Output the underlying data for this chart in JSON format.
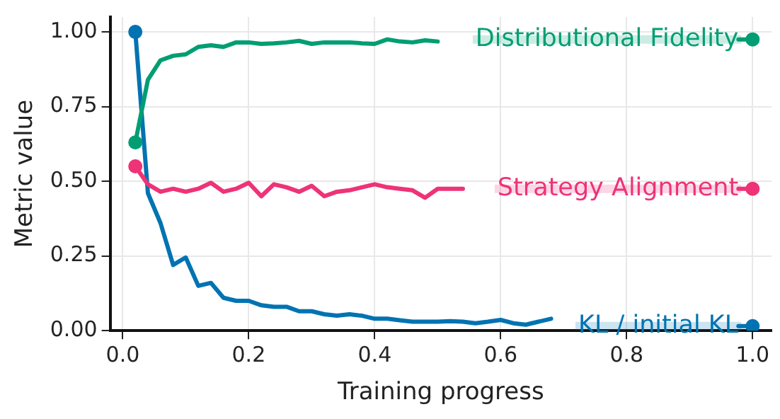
{
  "chart_data": {
    "type": "line",
    "xlabel": "Training progress",
    "ylabel": "Metric value",
    "x": [
      0.02,
      0.04,
      0.06,
      0.08,
      0.1,
      0.12,
      0.14,
      0.16,
      0.18,
      0.2,
      0.22,
      0.24,
      0.26,
      0.28,
      0.3,
      0.32,
      0.34,
      0.36,
      0.38,
      0.4,
      0.42,
      0.44,
      0.46,
      0.48,
      0.5,
      0.52,
      0.54,
      0.56,
      0.58,
      0.6,
      0.62,
      0.64,
      0.66,
      0.68,
      0.7,
      0.72,
      0.74,
      0.76,
      0.78,
      0.8,
      0.82,
      0.84,
      0.86,
      0.88,
      0.9,
      0.92,
      0.94,
      0.96,
      0.98,
      1.0
    ],
    "series": [
      {
        "name": "Distributional Fidelity",
        "color": "#029e73",
        "values": [
          0.63,
          0.84,
          0.905,
          0.92,
          0.925,
          0.95,
          0.955,
          0.95,
          0.965,
          0.965,
          0.96,
          0.962,
          0.965,
          0.97,
          0.96,
          0.965,
          0.965,
          0.965,
          0.962,
          0.96,
          0.975,
          0.968,
          0.965,
          0.972,
          0.968,
          null,
          null,
          null,
          null,
          null,
          null,
          null,
          null,
          null,
          null,
          null,
          null,
          null,
          null,
          null,
          null,
          null,
          null,
          null,
          null,
          null,
          null,
          null,
          null,
          0.975
        ]
      },
      {
        "name": "Strategy Alignment",
        "color": "#ee3377",
        "values": [
          0.55,
          0.49,
          0.465,
          0.475,
          0.465,
          0.475,
          0.495,
          0.465,
          0.475,
          0.495,
          0.45,
          0.49,
          0.48,
          0.465,
          0.485,
          0.45,
          0.465,
          0.47,
          0.48,
          0.49,
          0.48,
          0.475,
          0.47,
          0.445,
          0.475,
          0.475,
          0.475,
          null,
          null,
          null,
          null,
          null,
          null,
          null,
          null,
          null,
          null,
          null,
          null,
          null,
          null,
          null,
          null,
          null,
          null,
          null,
          null,
          null,
          null,
          0.475
        ]
      },
      {
        "type": "scatter",
        "marker": "circle",
        "color": "#029e73",
        "values": [
          0.63,
          null,
          null,
          null,
          null,
          null,
          null,
          null,
          null,
          null,
          null,
          null,
          null,
          null,
          null,
          null,
          null,
          null,
          null,
          null,
          null,
          null,
          null,
          null,
          null,
          null,
          null,
          null,
          null,
          null,
          null,
          null,
          null,
          null,
          null,
          null,
          null,
          null,
          null,
          null,
          null,
          null,
          null,
          null,
          null,
          null,
          null,
          null,
          null,
          0.975
        ]
      },
      {
        "type": "scatter",
        "marker": "circle",
        "color": "#ee3377",
        "values": [
          0.55,
          null,
          null,
          null,
          null,
          null,
          null,
          null,
          null,
          null,
          null,
          null,
          null,
          null,
          null,
          null,
          null,
          null,
          null,
          null,
          null,
          null,
          null,
          null,
          null,
          null,
          null,
          null,
          null,
          null,
          null,
          null,
          null,
          null,
          null,
          null,
          null,
          null,
          null,
          null,
          null,
          null,
          null,
          null,
          null,
          null,
          null,
          null,
          null,
          0.475
        ]
      },
      {
        "type": "scatter",
        "marker": "circle",
        "color": "#0173b2",
        "values": [
          1.0,
          null,
          null,
          null,
          null,
          null,
          null,
          null,
          null,
          null,
          null,
          null,
          null,
          null,
          null,
          null,
          null,
          null,
          null,
          null,
          null,
          null,
          null,
          null,
          null,
          null,
          null,
          null,
          null,
          null,
          null,
          null,
          null,
          null,
          null,
          null,
          null,
          null,
          null,
          null,
          null,
          null,
          null,
          null,
          null,
          null,
          null,
          null,
          null,
          0.015
        ]
      },
      {
        "name": "KL / initial KL",
        "color": "#0173b2",
        "values": [
          1.0,
          0.46,
          0.36,
          0.22,
          0.245,
          0.15,
          0.16,
          0.11,
          0.1,
          0.1,
          0.085,
          0.08,
          0.08,
          0.065,
          0.065,
          0.055,
          0.05,
          0.055,
          0.05,
          0.04,
          0.04,
          0.035,
          0.03,
          0.03,
          0.03,
          0.032,
          0.03,
          0.025,
          0.03,
          0.036,
          0.025,
          0.02,
          0.03,
          0.04,
          null,
          null,
          null,
          null,
          null,
          null,
          null,
          null,
          null,
          null,
          null,
          null,
          null,
          null,
          null,
          0.015
        ]
      }
    ],
    "xlim": [
      -0.02,
      1.03
    ],
    "xticks": [
      {
        "value": 0,
        "label": "0.0"
      },
      {
        "value": 0.2,
        "label": "0.2"
      },
      {
        "value": 0.4,
        "label": "0.4"
      },
      {
        "value": 0.6,
        "label": "0.6"
      },
      {
        "value": 0.8,
        "label": "0.8"
      },
      {
        "value": 1,
        "label": "1.0"
      }
    ],
    "ylim": [
      0,
      1.05
    ],
    "yticks": [
      {
        "value": 0,
        "label": "0.00"
      },
      {
        "value": 0.25,
        "label": "0.25"
      },
      {
        "value": 0.5,
        "label": "0.50"
      },
      {
        "value": 0.75,
        "label": "0.75"
      },
      {
        "value": 1,
        "label": "1.00"
      }
    ],
    "grid": true,
    "legend": "right",
    "line_style": "solid"
  }
}
